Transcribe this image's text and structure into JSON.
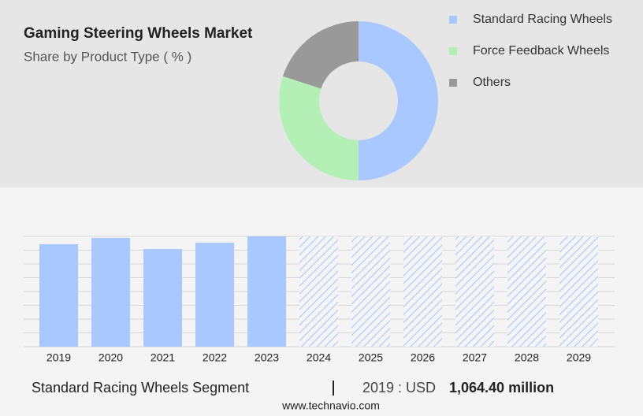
{
  "chart_data": [
    {
      "type": "donut",
      "title": "Gaming Steering Wheels Market",
      "subtitle": "Share by Product Type ( % )",
      "categories": [
        "Standard Racing Wheels",
        "Force Feedback Wheels",
        "Others"
      ],
      "values": [
        50,
        30,
        20
      ],
      "colors": [
        "#a8c8ff",
        "#b4f0b6",
        "#999999"
      ],
      "legend": "right"
    },
    {
      "type": "bar",
      "categories": [
        "2019",
        "2020",
        "2021",
        "2022",
        "2023",
        "2024",
        "2025",
        "2026",
        "2027",
        "2028",
        "2029"
      ],
      "values": [
        1064.4,
        1130,
        1015,
        1080,
        1146,
        1146,
        1146,
        1146,
        1146,
        1146,
        1146
      ],
      "hatched": [
        false,
        false,
        false,
        false,
        false,
        true,
        true,
        true,
        true,
        true,
        true
      ],
      "color": "#a8c8ff",
      "ylim": [
        0,
        1146
      ],
      "grid": true
    }
  ],
  "footer": {
    "segment": "Standard Racing Wheels Segment",
    "year_label": "2019 : USD",
    "value_label": "1,064.40 million",
    "source": "www.technavio.com"
  }
}
